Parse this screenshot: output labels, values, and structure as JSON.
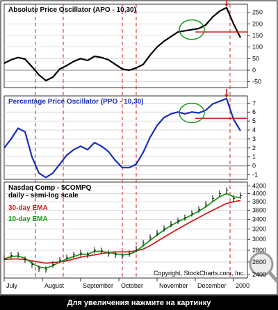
{
  "caption": "Для увеличения нажмите на картинку",
  "watermark": "Copyright, StockCharts.com, Inc.",
  "colors": {
    "apo_line": "#000000",
    "ppo_line": "#1a2fb8",
    "price_bar": "#000000",
    "ema30": "#d42020",
    "ema10": "#1a9a1a",
    "guide_lines": "#d42020",
    "signal_line": "#d42020",
    "highlight_ellipse": "#1a9a1a",
    "arrow": "#d42020",
    "grid": "#c8c8c8",
    "title_blue": "#1a2fb8"
  },
  "chart_data": [
    {
      "type": "line",
      "title": "Absolute Price Oscillator (APO - 10,30)",
      "y_ticks": [
        "250",
        "200",
        "150",
        "100",
        "50",
        "0",
        "-50"
      ],
      "ylim": [
        -75,
        285
      ],
      "x": [
        0,
        4,
        8,
        12,
        16,
        20,
        24,
        28,
        32,
        36,
        40,
        44,
        48,
        52,
        56,
        60,
        64,
        68,
        72,
        76,
        80,
        84,
        88,
        92,
        96,
        100,
        104,
        108,
        112,
        116,
        120,
        124,
        128,
        132,
        136
      ],
      "series": [
        {
          "values": [
            30,
            45,
            55,
            48,
            15,
            -20,
            -45,
            -30,
            5,
            20,
            38,
            50,
            42,
            60,
            55,
            45,
            25,
            5,
            0,
            10,
            25,
            65,
            100,
            125,
            145,
            165,
            170,
            175,
            180,
            195,
            230,
            255,
            270,
            200,
            140
          ]
        }
      ],
      "signal_level": 165
    },
    {
      "type": "line",
      "title": "Percentage Price Oscillator (PPO - 10,30)",
      "y_ticks": [
        "7",
        "6",
        "5",
        "4",
        "3",
        "2",
        "1",
        "0",
        "-1"
      ],
      "ylim": [
        -1.5,
        7.8
      ],
      "x": [
        0,
        4,
        8,
        12,
        16,
        20,
        24,
        28,
        32,
        36,
        40,
        44,
        48,
        52,
        56,
        60,
        64,
        68,
        72,
        76,
        80,
        84,
        88,
        92,
        96,
        100,
        104,
        108,
        112,
        116,
        120,
        124,
        128,
        132,
        136
      ],
      "series": [
        {
          "values": [
            2.0,
            3.0,
            4.2,
            3.8,
            1.0,
            -0.8,
            -1.3,
            -0.8,
            0.2,
            1.2,
            1.8,
            2.2,
            1.8,
            2.6,
            2.2,
            1.6,
            0.6,
            -0.2,
            -0.2,
            0.2,
            1.5,
            3.2,
            4.5,
            5.4,
            5.8,
            6.0,
            5.8,
            6.0,
            5.9,
            6.2,
            6.9,
            7.2,
            7.5,
            5.2,
            3.9
          ]
        }
      ],
      "signal_level": 5.3
    },
    {
      "type": "line",
      "title": "Nasdaq Comp - $COMPQ",
      "subtitle": "daily - semi-log scale",
      "y_ticks": [
        "4200",
        "4000",
        "3800",
        "3600",
        "3400",
        "3200",
        "3000",
        "2800",
        "2600",
        "2400"
      ],
      "ylim": [
        2350,
        4300
      ],
      "log_scale": true,
      "x": [
        0,
        4,
        8,
        12,
        16,
        20,
        24,
        28,
        32,
        36,
        40,
        44,
        48,
        52,
        56,
        60,
        64,
        68,
        72,
        76,
        80,
        84,
        88,
        92,
        96,
        100,
        104,
        108,
        112,
        116,
        120,
        124,
        128,
        132,
        136
      ],
      "series": [
        {
          "name": "30-day EMA",
          "values": [
            2640,
            2650,
            2650,
            2640,
            2620,
            2600,
            2580,
            2590,
            2600,
            2620,
            2650,
            2680,
            2700,
            2720,
            2740,
            2760,
            2770,
            2770,
            2770,
            2790,
            2820,
            2880,
            2960,
            3040,
            3120,
            3200,
            3280,
            3360,
            3440,
            3520,
            3600,
            3680,
            3760,
            3800,
            3830
          ]
        },
        {
          "name": "10-day EMA",
          "values": [
            2650,
            2690,
            2700,
            2660,
            2580,
            2520,
            2500,
            2540,
            2600,
            2650,
            2690,
            2730,
            2730,
            2780,
            2780,
            2760,
            2740,
            2720,
            2730,
            2780,
            2880,
            2980,
            3080,
            3180,
            3270,
            3350,
            3420,
            3500,
            3580,
            3680,
            3800,
            3920,
            4000,
            3920,
            3900
          ]
        },
        {
          "name": "Price",
          "values": [
            2660,
            2710,
            2720,
            2640,
            2560,
            2490,
            2480,
            2560,
            2630,
            2670,
            2720,
            2750,
            2720,
            2800,
            2790,
            2740,
            2720,
            2700,
            2740,
            2820,
            2930,
            3030,
            3120,
            3210,
            3300,
            3370,
            3440,
            3530,
            3620,
            3740,
            3880,
            4000,
            4080,
            3880,
            3950
          ]
        }
      ],
      "legend": [
        "30-day EMA",
        "10-day EMA"
      ]
    }
  ],
  "x_axis": {
    "month_labels": [
      "July",
      "August",
      "September",
      "October",
      "November",
      "December",
      "2000"
    ],
    "month_positions": [
      0,
      22,
      44,
      66,
      88,
      110,
      132
    ],
    "guide_lines": [
      18,
      34,
      68,
      76,
      130
    ]
  }
}
